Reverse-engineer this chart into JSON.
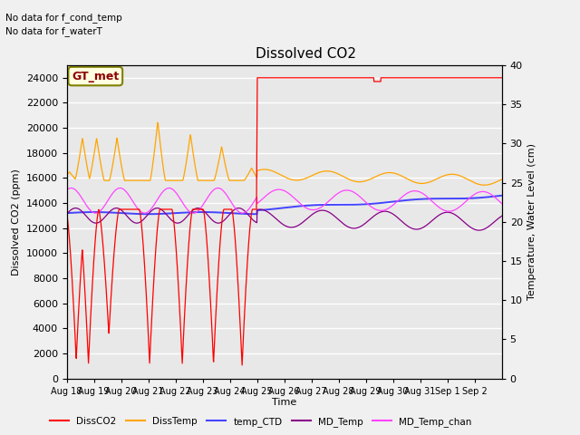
{
  "title": "Dissolved CO2",
  "xlabel": "Time",
  "ylabel_left": "Dissolved CO2 (ppm)",
  "ylabel_right": "Temperature, Water Level (cm)",
  "ylim_left": [
    0,
    25000
  ],
  "ylim_right": [
    0,
    40
  ],
  "annotation_top_left": "No data for f_cond_temp\nNo data for f_waterT",
  "gt_met_label": "GT_met",
  "fig_bg_color": "#f0f0f0",
  "plot_bg_color": "#e8e8e8",
  "colors": {
    "DissCO2": "#ff0000",
    "DissTemp": "#ffa500",
    "temp_CTD": "#4444ff",
    "MD_Temp": "#880088",
    "MD_Temp_chan": "#ff44ff"
  },
  "tick_labels": [
    "Aug 18",
    "Aug 19",
    "Aug 20",
    "Aug 21",
    "Aug 22",
    "Aug 23",
    "Aug 24",
    "Aug 25",
    "Aug 26",
    "Aug 27",
    "Aug 28",
    "Aug 29",
    "Aug 30",
    "Aug 31",
    "Sep 1",
    "Sep 2"
  ],
  "right_yticks": [
    0,
    5,
    10,
    15,
    20,
    25,
    30,
    35,
    40
  ],
  "left_yticks": [
    0,
    2000,
    4000,
    6000,
    8000,
    10000,
    12000,
    14000,
    16000,
    18000,
    20000,
    22000,
    24000
  ]
}
